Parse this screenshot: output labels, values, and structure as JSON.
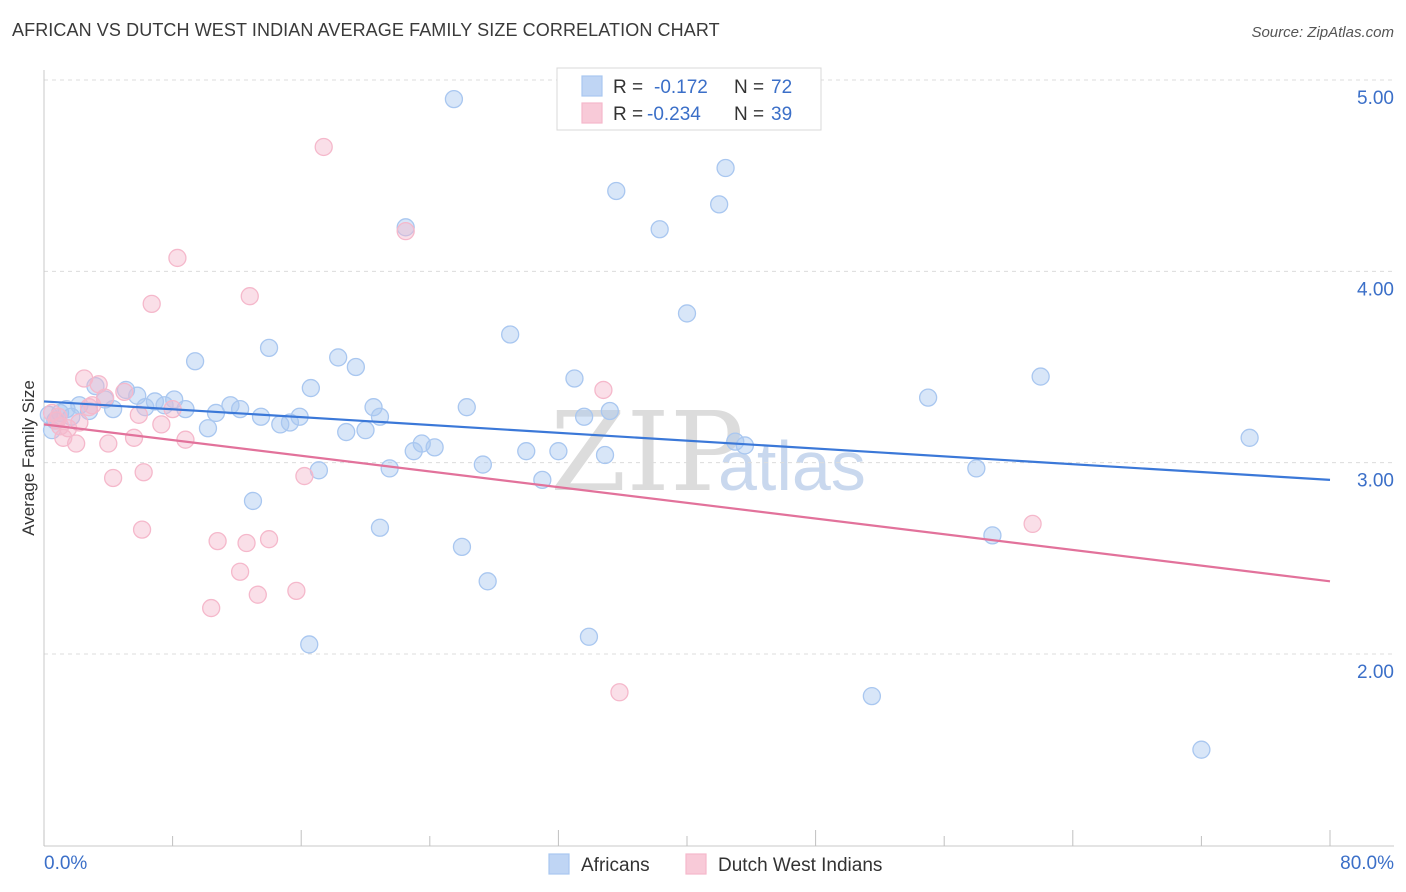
{
  "header": {
    "title": "AFRICAN VS DUTCH WEST INDIAN AVERAGE FAMILY SIZE CORRELATION CHART",
    "source": "Source: ZipAtlas.com"
  },
  "watermark": {
    "zip": "ZIP",
    "atlas": "atlas"
  },
  "legend_top": {
    "rows": [
      {
        "r_label": "R =",
        "r_value": "-0.172",
        "n_label": "N =",
        "n_value": "72",
        "color": "#a9c7f0"
      },
      {
        "r_label": "R =",
        "r_value": "-0.234",
        "n_label": "N =",
        "n_value": "39",
        "color": "#f5b8cb"
      }
    ]
  },
  "legend_bottom": {
    "items": [
      {
        "label": "Africans",
        "color": "#a9c7f0"
      },
      {
        "label": "Dutch West Indians",
        "color": "#f5b8cb"
      }
    ]
  },
  "chart_data": {
    "type": "scatter",
    "title": "AFRICAN VS DUTCH WEST INDIAN AVERAGE FAMILY SIZE CORRELATION CHART",
    "xlabel": "",
    "ylabel": "Average Family Size",
    "xlim": [
      0,
      80
    ],
    "ylim": [
      1.0,
      5.3
    ],
    "x_tick_labels": [
      "0.0%",
      "80.0%"
    ],
    "y_ticks": [
      2.0,
      3.0,
      4.0,
      5.0
    ],
    "y_tick_labels": [
      "2.00",
      "3.00",
      "4.00",
      "5.00"
    ],
    "series": [
      {
        "name": "Africans",
        "color": "#3b78d8",
        "fill": "#a9c7f0",
        "trend": {
          "x": [
            0,
            80
          ],
          "y": [
            3.32,
            2.91
          ]
        },
        "points": [
          [
            0.3,
            3.25
          ],
          [
            0.5,
            3.17
          ],
          [
            0.7,
            3.22
          ],
          [
            1.0,
            3.26
          ],
          [
            1.4,
            3.28
          ],
          [
            1.7,
            3.24
          ],
          [
            2.2,
            3.3
          ],
          [
            2.8,
            3.27
          ],
          [
            3.2,
            3.4
          ],
          [
            3.8,
            3.33
          ],
          [
            4.3,
            3.28
          ],
          [
            5.1,
            3.38
          ],
          [
            5.8,
            3.35
          ],
          [
            6.3,
            3.29
          ],
          [
            6.9,
            3.32
          ],
          [
            7.5,
            3.3
          ],
          [
            8.1,
            3.33
          ],
          [
            8.8,
            3.28
          ],
          [
            9.4,
            3.53
          ],
          [
            10.2,
            3.18
          ],
          [
            10.7,
            3.26
          ],
          [
            11.6,
            3.3
          ],
          [
            12.2,
            3.28
          ],
          [
            13.0,
            2.8
          ],
          [
            13.5,
            3.24
          ],
          [
            14.0,
            3.6
          ],
          [
            14.7,
            3.2
          ],
          [
            15.3,
            3.21
          ],
          [
            15.9,
            3.24
          ],
          [
            16.6,
            3.39
          ],
          [
            17.1,
            2.96
          ],
          [
            18.3,
            3.55
          ],
          [
            18.8,
            3.16
          ],
          [
            19.4,
            3.5
          ],
          [
            20.0,
            3.17
          ],
          [
            20.5,
            3.29
          ],
          [
            20.9,
            3.24
          ],
          [
            21.5,
            2.97
          ],
          [
            20.9,
            2.66
          ],
          [
            22.5,
            4.23
          ],
          [
            23.0,
            3.06
          ],
          [
            23.5,
            3.1
          ],
          [
            24.3,
            3.08
          ],
          [
            26.0,
            2.56
          ],
          [
            26.3,
            3.29
          ],
          [
            27.3,
            2.99
          ],
          [
            25.5,
            4.9
          ],
          [
            27.6,
            2.38
          ],
          [
            29.0,
            3.67
          ],
          [
            30.0,
            3.06
          ],
          [
            31.0,
            2.91
          ],
          [
            32.0,
            3.06
          ],
          [
            33.0,
            3.44
          ],
          [
            33.6,
            3.24
          ],
          [
            33.9,
            2.09
          ],
          [
            34.9,
            3.04
          ],
          [
            35.2,
            3.27
          ],
          [
            35.6,
            4.42
          ],
          [
            38.3,
            4.22
          ],
          [
            40.0,
            3.78
          ],
          [
            42.0,
            4.35
          ],
          [
            42.4,
            4.54
          ],
          [
            43.0,
            3.11
          ],
          [
            43.6,
            3.09
          ],
          [
            51.5,
            1.78
          ],
          [
            55.0,
            3.34
          ],
          [
            58.0,
            2.97
          ],
          [
            59.0,
            2.62
          ],
          [
            62.0,
            3.45
          ],
          [
            72.0,
            1.5
          ],
          [
            75.0,
            3.13
          ],
          [
            16.5,
            2.05
          ]
        ]
      },
      {
        "name": "Dutch West Indians",
        "color": "#e2729b",
        "fill": "#f5b8cb",
        "trend": {
          "x": [
            0,
            80
          ],
          "y": [
            3.2,
            2.38
          ]
        },
        "points": [
          [
            0.5,
            3.26
          ],
          [
            0.8,
            3.22
          ],
          [
            1.0,
            3.19
          ],
          [
            1.5,
            3.18
          ],
          [
            2.0,
            3.1
          ],
          [
            2.2,
            3.21
          ],
          [
            2.5,
            3.44
          ],
          [
            3.0,
            3.3
          ],
          [
            3.4,
            3.41
          ],
          [
            3.8,
            3.34
          ],
          [
            4.0,
            3.1
          ],
          [
            4.3,
            2.92
          ],
          [
            5.0,
            3.37
          ],
          [
            5.6,
            3.13
          ],
          [
            5.9,
            3.25
          ],
          [
            6.1,
            2.65
          ],
          [
            6.2,
            2.95
          ],
          [
            6.7,
            3.83
          ],
          [
            7.3,
            3.2
          ],
          [
            8.0,
            3.28
          ],
          [
            8.3,
            4.07
          ],
          [
            8.8,
            3.12
          ],
          [
            10.4,
            2.24
          ],
          [
            10.8,
            2.59
          ],
          [
            12.2,
            2.43
          ],
          [
            12.6,
            2.58
          ],
          [
            12.8,
            3.87
          ],
          [
            13.3,
            2.31
          ],
          [
            14.0,
            2.6
          ],
          [
            15.7,
            2.33
          ],
          [
            16.2,
            2.93
          ],
          [
            17.4,
            4.65
          ],
          [
            22.5,
            4.21
          ],
          [
            34.8,
            3.38
          ],
          [
            35.8,
            1.8
          ],
          [
            61.5,
            2.68
          ],
          [
            1.2,
            3.13
          ],
          [
            0.9,
            3.24
          ],
          [
            2.8,
            3.29
          ]
        ]
      }
    ]
  }
}
